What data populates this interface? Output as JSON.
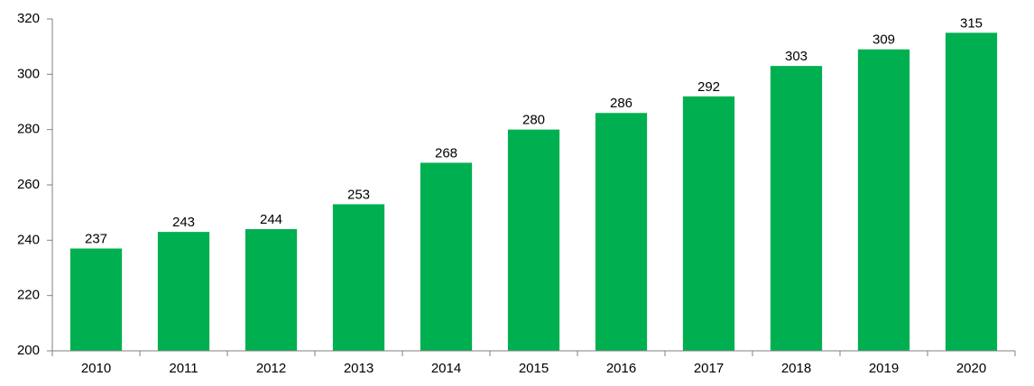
{
  "chart_data": {
    "type": "bar",
    "categories": [
      "2010",
      "2011",
      "2012",
      "2013",
      "2014",
      "2015",
      "2016",
      "2017",
      "2018",
      "2019",
      "2020"
    ],
    "values": [
      237,
      243,
      244,
      253,
      268,
      280,
      286,
      292,
      303,
      309,
      315
    ],
    "color": "#00b050",
    "ylim": [
      200,
      320
    ],
    "yticks": [
      200,
      220,
      240,
      260,
      280,
      300,
      320
    ],
    "grid": false
  }
}
